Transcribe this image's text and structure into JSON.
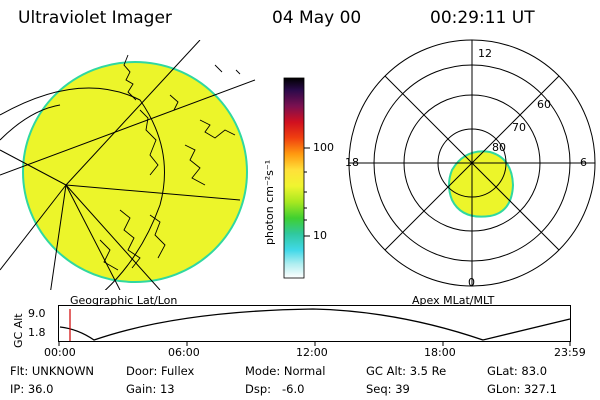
{
  "header": {
    "instrument": "Ultraviolet Imager",
    "date": "04 May 00",
    "time": "00:29:11 UT"
  },
  "colorbar": {
    "unit_label": "photon cm⁻²s⁻¹",
    "ticks": [
      "100",
      "10"
    ]
  },
  "geo_panel": {
    "label": "Geographic Lat/Lon"
  },
  "polar_panel": {
    "label": "Apex MLat/MLT",
    "mlt_labels": {
      "top": "12",
      "left": "18",
      "right": "6",
      "bottom": "0"
    },
    "lat_labels": [
      "60",
      "70",
      "80"
    ]
  },
  "altitude_plot": {
    "ylabel": "GC Alt",
    "yticks": [
      "9.0",
      "1.8"
    ],
    "xticks": [
      "00:00",
      "06:00",
      "12:00",
      "18:00",
      "23:59"
    ]
  },
  "info": {
    "flt": "Flt: UNKNOWN",
    "door": "Door: Fullex",
    "mode": "Mode: Normal",
    "gc_alt": "GC Alt: 3.5 Re",
    "glat": "GLat:  83.0",
    "ip": "IP: 36.0",
    "gain": "Gain: 13",
    "dsp": "Dsp:   -6.0",
    "seq": "Seq: 39",
    "glon": "GLon: 327.1"
  },
  "colors": {
    "image_fill": "#ecf52a",
    "image_edge": "#30d8a0",
    "marker": "#d00000"
  }
}
